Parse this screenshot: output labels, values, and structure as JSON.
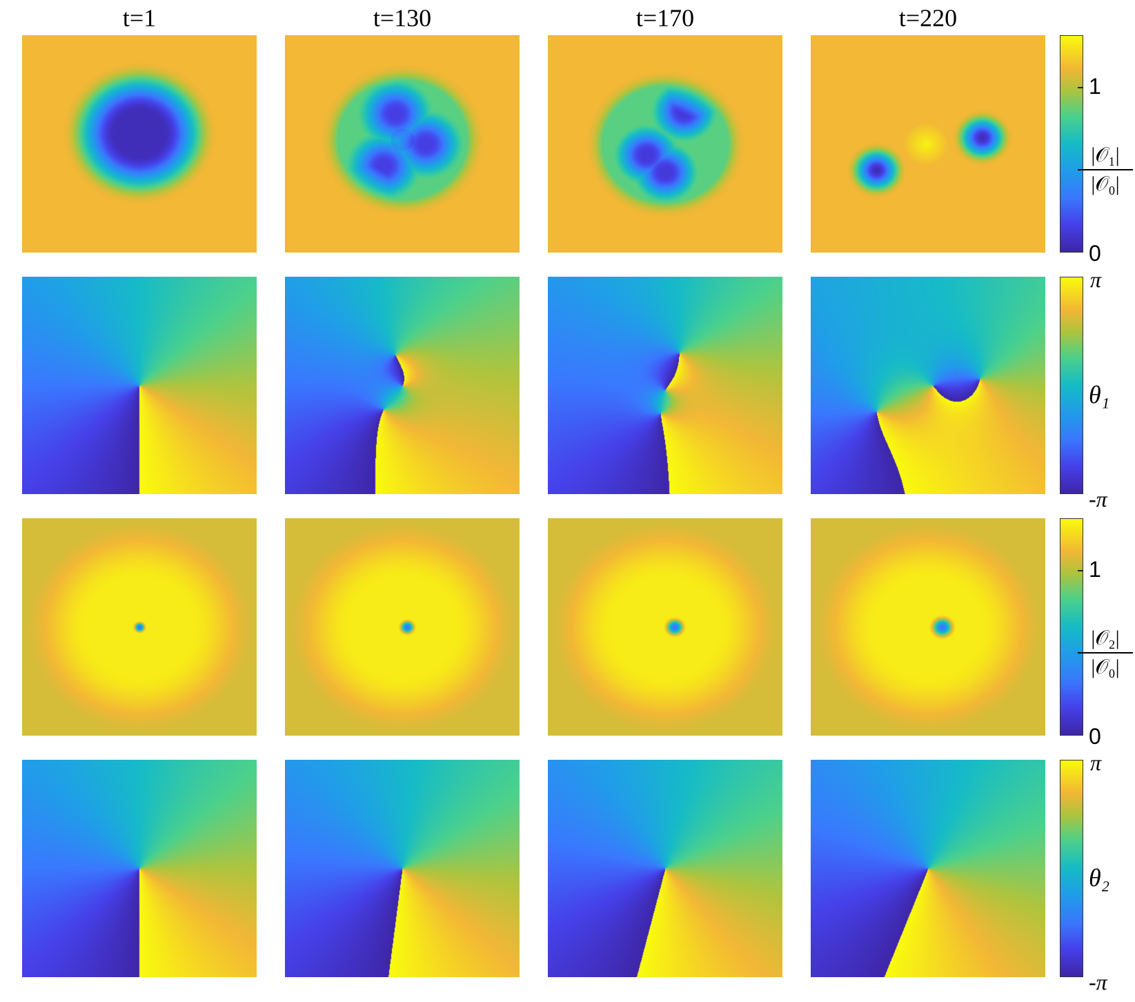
{
  "column_titles": [
    "t=1",
    "t=130",
    "t=170",
    "t=220"
  ],
  "rows": [
    {
      "quantity": "|O1|/|O0|",
      "label_numerator": "|𝒪₁|",
      "label_denominator": "|𝒪₀|",
      "ticks": [
        "1",
        "0"
      ],
      "range": [
        0,
        1.55
      ]
    },
    {
      "quantity": "theta_1",
      "label": "θ₁",
      "ticks": [
        "π",
        "-π"
      ],
      "range": [
        -3.1416,
        3.1416
      ]
    },
    {
      "quantity": "|O2|/|O0|",
      "label_numerator": "|𝒪₂|",
      "label_denominator": "|𝒪₀|",
      "ticks": [
        "1",
        "0"
      ],
      "range": [
        0,
        1.55
      ]
    },
    {
      "quantity": "theta_2",
      "label": "θ₂",
      "ticks": [
        "π",
        "-π"
      ],
      "range": [
        -3.1416,
        3.1416
      ]
    }
  ],
  "colormap": "parula",
  "colors": {
    "low": "#3e26a8",
    "mid": "#16bbc7",
    "high": "#f9fb0e",
    "bg_amplitude": "#d8bc2c"
  }
}
